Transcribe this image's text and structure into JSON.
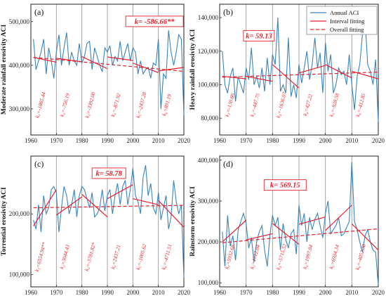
{
  "chart_data": [
    {
      "type": "line",
      "panel_label": "(a)",
      "ylabel": "Moderate rainfall erosivity ACI",
      "xlim": [
        1960,
        2020
      ],
      "ylim": [
        240000,
        540000
      ],
      "yticks": [
        300000,
        400000,
        500000
      ],
      "ytick_labels": [
        "300,000",
        "400,000",
        "500,000"
      ],
      "xticks": [
        1960,
        1970,
        1980,
        1990,
        2000,
        2010,
        2020
      ],
      "overall_k": "k= -586.66**",
      "series": [
        {
          "name": "Annual ACI",
          "x": [
            1961,
            1962,
            1963,
            1964,
            1965,
            1966,
            1967,
            1968,
            1969,
            1970,
            1971,
            1972,
            1973,
            1974,
            1975,
            1976,
            1977,
            1978,
            1979,
            1980,
            1981,
            1982,
            1983,
            1984,
            1985,
            1986,
            1987,
            1988,
            1989,
            1990,
            1991,
            1992,
            1993,
            1994,
            1995,
            1996,
            1997,
            1998,
            1999,
            2000,
            2001,
            2002,
            2003,
            2004,
            2005,
            2006,
            2007,
            2008,
            2009,
            2010,
            2011,
            2012,
            2013,
            2014,
            2015,
            2016,
            2017,
            2018,
            2019,
            2020
          ],
          "y": [
            460000,
            390000,
            410000,
            430000,
            460000,
            380000,
            440000,
            410000,
            370000,
            430000,
            470000,
            400000,
            440000,
            475000,
            400000,
            430000,
            410000,
            400000,
            450000,
            405000,
            420000,
            450000,
            455000,
            390000,
            440000,
            420000,
            400000,
            385000,
            440000,
            430000,
            445000,
            400000,
            420000,
            410000,
            455000,
            410000,
            430000,
            450000,
            410000,
            440000,
            430000,
            380000,
            410000,
            380000,
            390000,
            395000,
            370000,
            405000,
            400000,
            460000,
            300000,
            380000,
            370000,
            480000,
            430000,
            400000,
            430000,
            470000,
            460000,
            285000
          ]
        }
      ],
      "interval_fits": [
        {
          "x0": 1961,
          "x1": 1970,
          "y0": 418000,
          "y1": 407000,
          "label": "k₁=-1865.44"
        },
        {
          "x0": 1970,
          "x1": 1980,
          "y0": 416000,
          "y1": 408000,
          "label": "k₂=-756.19"
        },
        {
          "x0": 1980,
          "x1": 1990,
          "y0": 420000,
          "y1": 392000,
          "label": "k₃=-3392.00"
        },
        {
          "x0": 1990,
          "x1": 2000,
          "y0": 419000,
          "y1": 411000,
          "label": "k₄=-871.92"
        },
        {
          "x0": 2000,
          "x1": 2010,
          "y0": 405000,
          "y1": 383000,
          "label": "k₅=-2437.28"
        },
        {
          "x0": 2010,
          "x1": 2020,
          "y0": 387000,
          "y1": 395000,
          "label": "k₆=891.19"
        }
      ],
      "overall_fit": {
        "x0": 1961,
        "x1": 2020,
        "y0": 418000,
        "y1": 386000
      }
    },
    {
      "type": "line",
      "panel_label": "(b)",
      "ylabel": "Heavy rainfall erosivity ACI",
      "xlim": [
        1960,
        2020
      ],
      "ylim": [
        70000,
        148000
      ],
      "yticks": [
        80000,
        100000,
        120000,
        140000
      ],
      "ytick_labels": [
        "80,000",
        "100,000",
        "120,000",
        "140,000"
      ],
      "xticks": [
        1960,
        1970,
        1980,
        1990,
        2000,
        2010,
        2020
      ],
      "overall_k": "k= 59.13",
      "legend": [
        "Annual ACI",
        "Interval fitting",
        "Overall fitting"
      ],
      "series": [
        {
          "name": "Annual ACI",
          "x": [
            1961,
            1962,
            1963,
            1964,
            1965,
            1966,
            1967,
            1968,
            1969,
            1970,
            1971,
            1972,
            1973,
            1974,
            1975,
            1976,
            1977,
            1978,
            1979,
            1980,
            1981,
            1982,
            1983,
            1984,
            1985,
            1986,
            1987,
            1988,
            1989,
            1990,
            1991,
            1992,
            1993,
            1994,
            1995,
            1996,
            1997,
            1998,
            1999,
            2000,
            2001,
            2002,
            2003,
            2004,
            2005,
            2006,
            2007,
            2008,
            2009,
            2010,
            2011,
            2012,
            2013,
            2014,
            2015,
            2016,
            2017,
            2018,
            2019,
            2020
          ],
          "y": [
            120000,
            100000,
            95000,
            105000,
            110000,
            90000,
            105000,
            100000,
            95000,
            110000,
            103000,
            122000,
            100000,
            105000,
            98000,
            110000,
            96000,
            116000,
            100000,
            118000,
            112000,
            140000,
            96000,
            100000,
            95000,
            128000,
            93000,
            100000,
            92000,
            112000,
            101000,
            110000,
            120000,
            103000,
            112000,
            128000,
            110000,
            119000,
            95000,
            125000,
            108000,
            118000,
            95000,
            100000,
            110000,
            106000,
            108000,
            100000,
            118000,
            100000,
            85000,
            105000,
            112000,
            130000,
            139000,
            112000,
            108000,
            100000,
            115000,
            78000
          ]
        }
      ],
      "interval_fits": [
        {
          "x0": 1961,
          "x1": 1970,
          "y0": 105000,
          "y1": 103500,
          "label": "k₁=-130.66"
        },
        {
          "x0": 1970,
          "x1": 1980,
          "y0": 105000,
          "y1": 102000,
          "label": "k₂=-447.75"
        },
        {
          "x0": 1980,
          "x1": 1990,
          "y0": 112000,
          "y1": 98000,
          "label": "k₃=-1636.07"
        },
        {
          "x0": 1990,
          "x1": 2000,
          "y0": 107000,
          "y1": 111500,
          "label": "k₄=427.22"
        },
        {
          "x0": 2000,
          "x1": 2010,
          "y0": 112000,
          "y1": 104000,
          "label": "k₅=-928.58"
        },
        {
          "x0": 2010,
          "x1": 2020,
          "y0": 108000,
          "y1": 103500,
          "label": "k₆=-412.85"
        }
      ],
      "overall_fit": {
        "x0": 1961,
        "x1": 2020,
        "y0": 104500,
        "y1": 107500
      }
    },
    {
      "type": "line",
      "panel_label": "(c)",
      "ylabel": "Torrential erosivity ACI",
      "xlim": [
        1960,
        2020
      ],
      "ylim": [
        80000,
        295000
      ],
      "yticks": [
        100000,
        200000
      ],
      "ytick_labels": [
        "100,000",
        "200,000"
      ],
      "xticks": [
        1960,
        1970,
        1980,
        1990,
        2000,
        2010,
        2020
      ],
      "overall_k": "k= 58.78",
      "series": [
        {
          "name": "Annual ACI",
          "x": [
            1961,
            1962,
            1963,
            1964,
            1965,
            1966,
            1967,
            1968,
            1969,
            1970,
            1971,
            1972,
            1973,
            1974,
            1975,
            1976,
            1977,
            1978,
            1979,
            1980,
            1981,
            1982,
            1983,
            1984,
            1985,
            1986,
            1987,
            1988,
            1989,
            1990,
            1991,
            1992,
            1993,
            1994,
            1995,
            1996,
            1997,
            1998,
            1999,
            2000,
            2001,
            2002,
            2003,
            2004,
            2005,
            2006,
            2007,
            2008,
            2009,
            2010,
            2011,
            2012,
            2013,
            2014,
            2015,
            2016,
            2017,
            2018,
            2019,
            2020
          ],
          "y": [
            190000,
            175000,
            215000,
            170000,
            230000,
            200000,
            210000,
            240000,
            245000,
            235000,
            170000,
            210000,
            245000,
            230000,
            200000,
            215000,
            240000,
            195000,
            230000,
            245000,
            240000,
            225000,
            210000,
            235000,
            195000,
            200000,
            210000,
            240000,
            205000,
            230000,
            240000,
            200000,
            230000,
            250000,
            215000,
            245000,
            255000,
            215000,
            240000,
            275000,
            230000,
            220000,
            200000,
            260000,
            280000,
            230000,
            250000,
            210000,
            200000,
            235000,
            190000,
            210000,
            230000,
            175000,
            195000,
            255000,
            220000,
            200000,
            215000,
            95000
          ]
        }
      ],
      "interval_fits": [
        {
          "x0": 1961,
          "x1": 1970,
          "y0": 180000,
          "y1": 240000,
          "label": "k₁=6554.94**"
        },
        {
          "x0": 1970,
          "x1": 1980,
          "y0": 198000,
          "y1": 228000,
          "label": "k₂=3044.43"
        },
        {
          "x0": 1980,
          "x1": 1990,
          "y0": 232000,
          "y1": 195000,
          "label": "k₃=-3781.82*"
        },
        {
          "x0": 1990,
          "x1": 2000,
          "y0": 225000,
          "y1": 248000,
          "label": "k₄=2437.21"
        },
        {
          "x0": 2000,
          "x1": 2010,
          "y0": 225000,
          "y1": 215000,
          "label": "k₅=-1005.62"
        },
        {
          "x0": 2010,
          "x1": 2020,
          "y0": 222000,
          "y1": 178000,
          "label": "k₆=-4711.51"
        }
      ],
      "overall_fit": {
        "x0": 1961,
        "x1": 2020,
        "y0": 210000,
        "y1": 214000
      }
    },
    {
      "type": "line",
      "panel_label": "(d)",
      "ylabel": "Rainstorm erosivity ACI",
      "xlim": [
        1960,
        2020
      ],
      "ylim": [
        90000,
        410000
      ],
      "yticks": [
        100000,
        200000,
        300000,
        400000
      ],
      "ytick_labels": [
        "100,000",
        "200,000",
        "300,000",
        "400,000"
      ],
      "xticks": [
        1960,
        1970,
        1980,
        1990,
        2000,
        2010,
        2020
      ],
      "overall_k": "k= 569.15",
      "series": [
        {
          "name": "Annual ACI",
          "x": [
            1961,
            1962,
            1963,
            1964,
            1965,
            1966,
            1967,
            1968,
            1969,
            1970,
            1971,
            1972,
            1973,
            1974,
            1975,
            1976,
            1977,
            1978,
            1979,
            1980,
            1981,
            1982,
            1983,
            1984,
            1985,
            1986,
            1987,
            1988,
            1989,
            1990,
            1991,
            1992,
            1993,
            1994,
            1995,
            1996,
            1997,
            1998,
            1999,
            2000,
            2001,
            2002,
            2003,
            2004,
            2005,
            2006,
            2007,
            2008,
            2009,
            2010,
            2011,
            2012,
            2013,
            2014,
            2015,
            2016,
            2017,
            2018,
            2019,
            2020
          ],
          "y": [
            225000,
            140000,
            265000,
            190000,
            215000,
            155000,
            230000,
            250000,
            270000,
            245000,
            185000,
            210000,
            150000,
            200000,
            225000,
            240000,
            180000,
            140000,
            215000,
            265000,
            240000,
            260000,
            180000,
            245000,
            205000,
            185000,
            220000,
            230000,
            170000,
            290000,
            240000,
            270000,
            200000,
            260000,
            230000,
            255000,
            270000,
            240000,
            210000,
            270000,
            300000,
            220000,
            230000,
            240000,
            260000,
            215000,
            220000,
            235000,
            250000,
            395000,
            250000,
            230000,
            200000,
            175000,
            215000,
            230000,
            200000,
            180000,
            175000,
            95000
          ]
        }
      ],
      "interval_fits": [
        {
          "x0": 1961,
          "x1": 1970,
          "y0": 200000,
          "y1": 253000,
          "label": "k₁=5932.68"
        },
        {
          "x0": 1970,
          "x1": 1980,
          "y0": 205000,
          "y1": 220000,
          "label": "k₂=1712.84"
        },
        {
          "x0": 1980,
          "x1": 1990,
          "y0": 245000,
          "y1": 194000,
          "label": "k₃=-5715.52"
        },
        {
          "x0": 1990,
          "x1": 2000,
          "y0": 243000,
          "y1": 261000,
          "label": "k₄=1997.84"
        },
        {
          "x0": 2000,
          "x1": 2010,
          "y0": 228000,
          "y1": 290000,
          "label": "k₅=6934.34"
        },
        {
          "x0": 2010,
          "x1": 2020,
          "y0": 244000,
          "y1": 180000,
          "label": "k₆=-4052.30"
        }
      ],
      "overall_fit": {
        "x0": 1961,
        "x1": 2020,
        "y0": 198000,
        "y1": 232000
      }
    }
  ],
  "colors": {
    "series": "#3b83b8",
    "fit": "#e8202a",
    "grid": "#888888",
    "axis": "#222222"
  }
}
